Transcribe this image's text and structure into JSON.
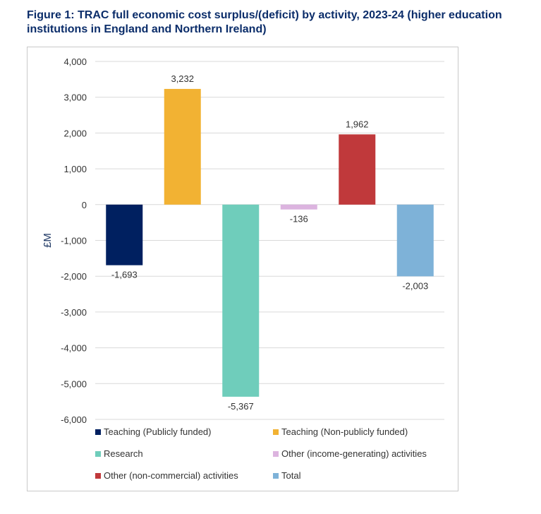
{
  "figure_title": "Figure 1: TRAC full economic cost surplus/(deficit) by activity, 2023-24 (higher education institutions in England and Northern Ireland)",
  "chart_data": {
    "type": "bar",
    "title": "Figure 1: TRAC full economic cost surplus/(deficit) by activity, 2023-24 (higher education institutions in England and Northern Ireland)",
    "xlabel": "",
    "ylabel": "£M",
    "ylim": [
      -6000,
      4000
    ],
    "yticks": [
      4000,
      3000,
      2000,
      1000,
      0,
      -1000,
      -2000,
      -3000,
      -4000,
      -5000,
      -6000
    ],
    "ytick_labels": [
      "4,000",
      "3,000",
      "2,000",
      "1,000",
      "0",
      "-1,000",
      "-2,000",
      "-3,000",
      "-4,000",
      "-5,000",
      "-6,000"
    ],
    "grid": true,
    "legend_position": "bottom",
    "series": [
      {
        "name": "Teaching (Publicly funded)",
        "value": -1693,
        "label": "-1,693",
        "color": "#002060"
      },
      {
        "name": "Teaching (Non-publicly funded)",
        "value": 3232,
        "label": "3,232",
        "color": "#f2b233"
      },
      {
        "name": "Research",
        "value": -5367,
        "label": "-5,367",
        "color": "#6fcdbb"
      },
      {
        "name": "Other (income-generating) activities",
        "value": -136,
        "label": "-136",
        "color": "#dcb4df"
      },
      {
        "name": "Other (non-commercial) activities",
        "value": 1962,
        "label": "1,962",
        "color": "#c0393b"
      },
      {
        "name": "Total",
        "value": -2003,
        "label": "-2,003",
        "color": "#7eb2d8"
      }
    ]
  }
}
